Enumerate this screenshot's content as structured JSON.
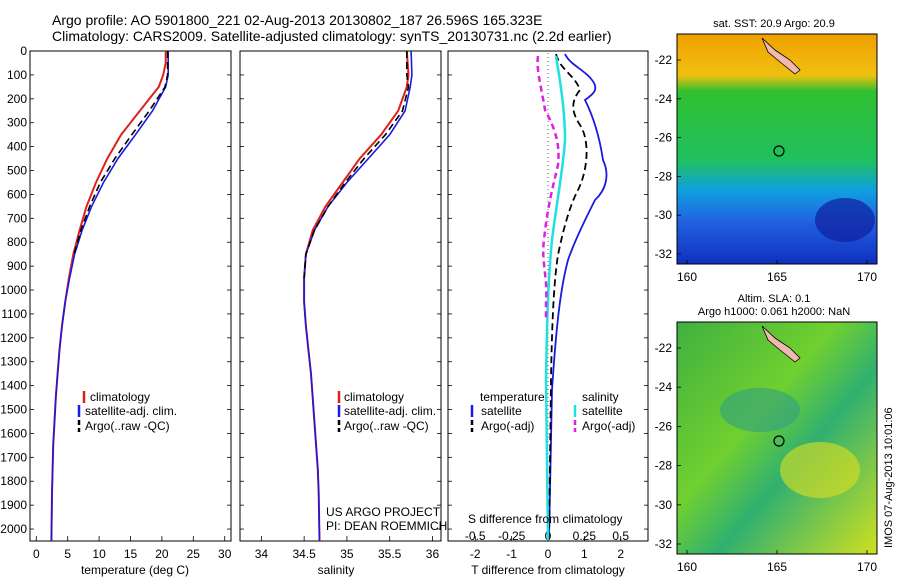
{
  "header": {
    "line1": "Argo profile: AO 5901800_221 02-Aug-2013 20130802_187 26.596S 165.323E",
    "line2": "Climatology: CARS2009. Satellite-adjusted climatology: synTS_20130731.nc (2.2d earlier)"
  },
  "colors": {
    "climatology": "#e0201a",
    "satellite": "#1a1ae0",
    "argo": "#000000",
    "salinity_satellite": "#20e0e0",
    "salinity_argo": "#e020e0"
  },
  "shared_axes": {
    "pressure_ticks": [
      "0",
      "100",
      "200",
      "300",
      "400",
      "500",
      "600",
      "700",
      "800",
      "900",
      "1000",
      "1100",
      "1200",
      "1300",
      "1400",
      "1500",
      "1600",
      "1700",
      "1800",
      "1900",
      "2000"
    ]
  },
  "panels": {
    "temperature": {
      "xlabel": "temperature (deg C)",
      "xticks": [
        "0",
        "5",
        "10",
        "15",
        "20",
        "25",
        "30"
      ],
      "legend": [
        "climatology",
        "satellite-adj. clim.",
        "Argo(..raw -QC)"
      ]
    },
    "salinity": {
      "xlabel": "salinity",
      "xticks": [
        "34",
        "34.5",
        "35",
        "35.5",
        "36"
      ],
      "legend": [
        "climatology",
        "satellite-adj. clim.",
        "Argo(..raw -QC)"
      ],
      "credit1": "US ARGO PROJECT",
      "credit2": "PI: DEAN ROEMMICH"
    },
    "difference": {
      "top_label": "S difference from climatology",
      "top_ticks": [
        "-0.5",
        "-0.25",
        "0",
        "0.25",
        "0.5"
      ],
      "xlabel": "T difference from climatology",
      "xticks": [
        "-2",
        "-1",
        "0",
        "1",
        "2"
      ],
      "legend_temp_title": "temperature",
      "legend_sal_title": "salinity",
      "legend_temp": [
        "satellite",
        "Argo(-adj)"
      ],
      "legend_sal": [
        "satellite",
        "Argo(-adj)"
      ]
    }
  },
  "maps": {
    "sst": {
      "title": "sat. SST: 20.9 Argo: 20.9",
      "yticks": [
        "-22",
        "-24",
        "-26",
        "-28",
        "-30",
        "-32"
      ],
      "xticks": [
        "160",
        "165",
        "170"
      ]
    },
    "sla": {
      "title1": "Altim. SLA: 0.1",
      "title2": "Argo h1000: 0.061 h2000: NaN",
      "yticks": [
        "-22",
        "-24",
        "-26",
        "-28",
        "-30",
        "-32"
      ],
      "xticks": [
        "160",
        "165",
        "170"
      ]
    }
  },
  "footer": {
    "stamp": "IMOS 07-Aug-2013 10:01:06"
  },
  "chart_data": [
    {
      "type": "line",
      "title": "",
      "xlabel": "temperature (deg C)",
      "ylabel": "",
      "xlim": [
        -1,
        31
      ],
      "ylim": [
        2050,
        0
      ],
      "series": [
        {
          "name": "climatology",
          "x": [
            20.6,
            20.6,
            20.2,
            19.5,
            16.5,
            13.5,
            11.3,
            9.5,
            8.0,
            6.9,
            5.9,
            5.2,
            4.6,
            4.1,
            3.7,
            3.4,
            3.1,
            2.9,
            2.7,
            2.6,
            2.5,
            2.4
          ],
          "y": [
            0,
            50,
            100,
            150,
            250,
            350,
            450,
            550,
            650,
            750,
            850,
            950,
            1050,
            1150,
            1250,
            1350,
            1450,
            1550,
            1650,
            1750,
            1850,
            2050
          ]
        },
        {
          "name": "satellite-adj. clim.",
          "x": [
            21.0,
            21.0,
            21.0,
            20.6,
            18.5,
            15.8,
            13.0,
            10.7,
            8.8,
            7.3,
            6.1,
            5.3,
            4.6,
            4.1,
            3.7,
            3.4,
            3.1,
            2.9,
            2.7,
            2.6,
            2.5,
            2.4
          ],
          "y": [
            0,
            50,
            100,
            150,
            250,
            350,
            450,
            550,
            650,
            750,
            850,
            950,
            1050,
            1150,
            1250,
            1350,
            1450,
            1550,
            1650,
            1750,
            1850,
            2050
          ]
        },
        {
          "name": "Argo(..raw -QC)",
          "x": [
            20.9,
            20.9,
            20.9,
            20.5,
            18.0,
            15.2,
            12.5,
            10.2,
            8.5,
            7.1,
            6.0
          ],
          "y": [
            0,
            50,
            100,
            150,
            250,
            350,
            450,
            550,
            650,
            750,
            850
          ]
        }
      ]
    },
    {
      "type": "line",
      "title": "",
      "xlabel": "salinity",
      "ylabel": "",
      "xlim": [
        33.75,
        36.1
      ],
      "ylim": [
        2050,
        0
      ],
      "series": [
        {
          "name": "climatology",
          "x": [
            35.7,
            35.72,
            35.7,
            35.6,
            35.4,
            35.15,
            34.95,
            34.75,
            34.6,
            34.52,
            34.5,
            34.5,
            34.52,
            34.55,
            34.58,
            34.6,
            34.62,
            34.64,
            34.66,
            34.67,
            34.68
          ],
          "y": [
            0,
            100,
            150,
            250,
            350,
            450,
            550,
            650,
            750,
            850,
            950,
            1050,
            1150,
            1250,
            1350,
            1450,
            1550,
            1650,
            1750,
            1850,
            2050
          ]
        },
        {
          "name": "satellite-adj. clim.",
          "x": [
            35.75,
            35.76,
            35.74,
            35.68,
            35.5,
            35.25,
            35.0,
            34.78,
            34.62,
            34.52,
            34.5,
            34.5,
            34.52,
            34.55,
            34.58,
            34.6,
            34.62,
            34.64,
            34.66,
            34.67,
            34.68
          ],
          "y": [
            0,
            100,
            150,
            250,
            350,
            450,
            550,
            650,
            750,
            850,
            950,
            1050,
            1150,
            1250,
            1350,
            1450,
            1550,
            1650,
            1750,
            1850,
            2050
          ]
        },
        {
          "name": "Argo(..raw -QC)",
          "x": [
            35.7,
            35.7,
            35.72,
            35.65,
            35.45,
            35.2,
            34.98,
            34.78,
            34.62,
            34.52,
            34.5
          ],
          "y": [
            0,
            100,
            150,
            250,
            350,
            450,
            550,
            650,
            750,
            850,
            950
          ]
        }
      ]
    }
  ]
}
